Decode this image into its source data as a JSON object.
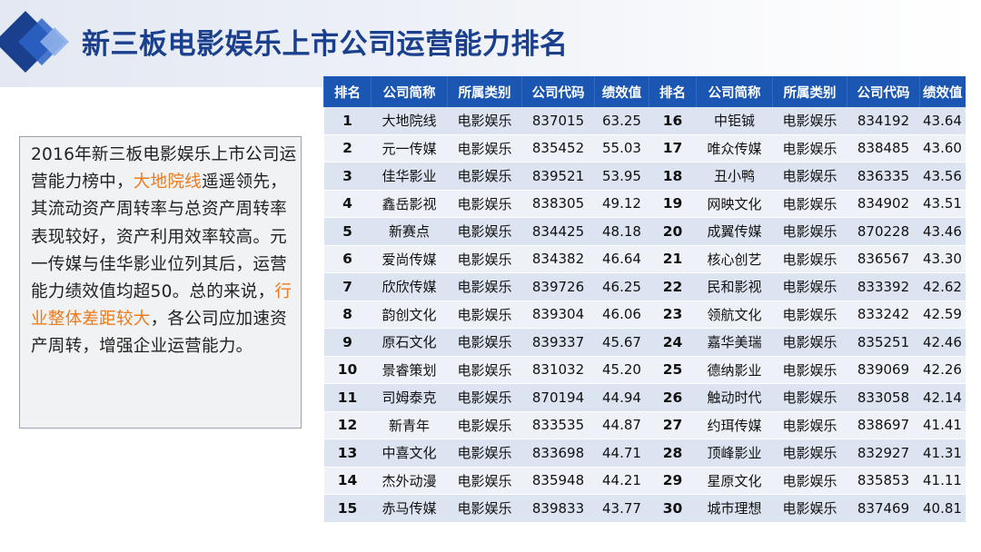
{
  "title": "新三板电影娱乐上市公司运营能力排名",
  "summary": {
    "parts": [
      {
        "text": "2016年新三板电影娱乐上市公司运营能力榜中，",
        "hl": false
      },
      {
        "text": "大地院线",
        "hl": true
      },
      {
        "text": "遥遥领先，其流动资产周转率与总资产周转率表现较好，资产利用效率较高。元一传媒与佳华影业位列其后，运营能力绩效值均超50。总的来说，",
        "hl": false
      },
      {
        "text": "行业整体差距较大",
        "hl": true
      },
      {
        "text": "，各公司应加速资产周转，增强企业运营能力。",
        "hl": false
      }
    ]
  },
  "colors": {
    "accent": "#1a56b2",
    "highlight": "#ee7a1a",
    "title": "#1a3f8c"
  },
  "table": {
    "headers": [
      "排名",
      "公司简称",
      "所属类别",
      "公司代码",
      "绩效值",
      "排名",
      "公司简称",
      "所属类别",
      "公司代码",
      "绩效值"
    ],
    "rows": [
      [
        "1",
        "大地院线",
        "电影娱乐",
        "837015",
        "63.25",
        "16",
        "中钜铖",
        "电影娱乐",
        "834192",
        "43.64"
      ],
      [
        "2",
        "元一传媒",
        "电影娱乐",
        "835452",
        "55.03",
        "17",
        "唯众传媒",
        "电影娱乐",
        "838485",
        "43.60"
      ],
      [
        "3",
        "佳华影业",
        "电影娱乐",
        "839521",
        "53.95",
        "18",
        "丑小鸭",
        "电影娱乐",
        "836335",
        "43.56"
      ],
      [
        "4",
        "鑫岳影视",
        "电影娱乐",
        "838305",
        "49.12",
        "19",
        "网映文化",
        "电影娱乐",
        "834902",
        "43.51"
      ],
      [
        "5",
        "新赛点",
        "电影娱乐",
        "834425",
        "48.18",
        "20",
        "成翼传媒",
        "电影娱乐",
        "870228",
        "43.46"
      ],
      [
        "6",
        "爱尚传媒",
        "电影娱乐",
        "834382",
        "46.64",
        "21",
        "核心创艺",
        "电影娱乐",
        "836567",
        "43.30"
      ],
      [
        "7",
        "欣欣传媒",
        "电影娱乐",
        "839726",
        "46.25",
        "22",
        "民和影视",
        "电影娱乐",
        "833392",
        "42.62"
      ],
      [
        "8",
        "韵创文化",
        "电影娱乐",
        "839304",
        "46.06",
        "23",
        "领航文化",
        "电影娱乐",
        "833242",
        "42.59"
      ],
      [
        "9",
        "原石文化",
        "电影娱乐",
        "839337",
        "45.67",
        "24",
        "嘉华美瑞",
        "电影娱乐",
        "835251",
        "42.46"
      ],
      [
        "10",
        "景睿策划",
        "电影娱乐",
        "831032",
        "45.20",
        "25",
        "德纳影业",
        "电影娱乐",
        "839069",
        "42.26"
      ],
      [
        "11",
        "司姆泰克",
        "电影娱乐",
        "870194",
        "44.94",
        "26",
        "触动时代",
        "电影娱乐",
        "833058",
        "42.14"
      ],
      [
        "12",
        "新青年",
        "电影娱乐",
        "833535",
        "44.87",
        "27",
        "约珥传媒",
        "电影娱乐",
        "838697",
        "41.41"
      ],
      [
        "13",
        "中喜文化",
        "电影娱乐",
        "833698",
        "44.71",
        "28",
        "顶峰影业",
        "电影娱乐",
        "832927",
        "41.31"
      ],
      [
        "14",
        "杰外动漫",
        "电影娱乐",
        "835948",
        "44.21",
        "29",
        "星原文化",
        "电影娱乐",
        "835853",
        "41.11"
      ],
      [
        "15",
        "赤马传媒",
        "电影娱乐",
        "839833",
        "43.77",
        "30",
        "城市理想",
        "电影娱乐",
        "837469",
        "40.81"
      ]
    ]
  }
}
